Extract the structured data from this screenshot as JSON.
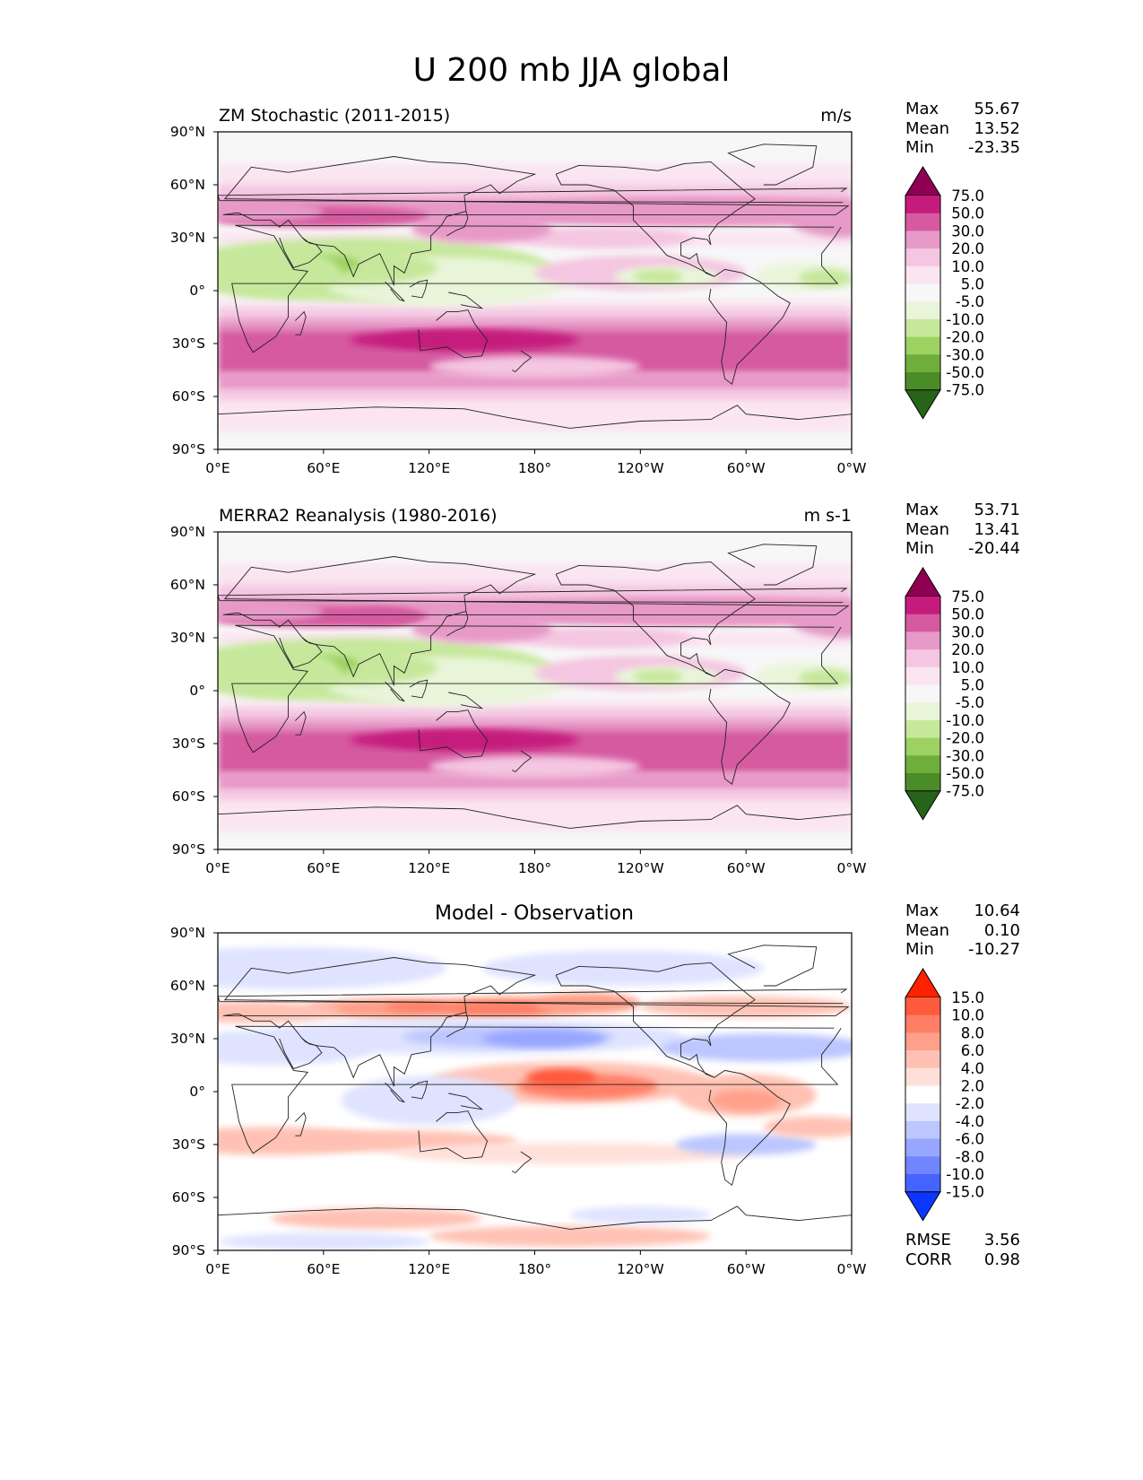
{
  "figure_title": "U 200 mb JJA global",
  "lat_labels": [
    "90°N",
    "60°N",
    "30°N",
    "0°",
    "30°S",
    "60°S",
    "90°S"
  ],
  "lon_labels": [
    "0°E",
    "60°E",
    "120°E",
    "180°",
    "120°W",
    "60°W",
    "0°W"
  ],
  "panels": [
    {
      "left_title": "ZM Stochastic (2011-2015)",
      "right_title": "m/s",
      "stats": {
        "max_label": "Max",
        "max": "55.67",
        "mean_label": "Mean",
        "mean": "13.52",
        "min_label": "Min",
        "min": "-23.35"
      },
      "colorbar": {
        "levels": [
          "75.0",
          "50.0",
          "30.0",
          "20.0",
          "10.0",
          "5.0",
          "-5.0",
          "-10.0",
          "-20.0",
          "-30.0",
          "-50.0",
          "-75.0"
        ],
        "colors": [
          "#8e0152",
          "#c51b7d",
          "#d55aa0",
          "#e799c8",
          "#f4c6e1",
          "#fae5f1",
          "#f7f7f7",
          "#e9f5d9",
          "#c6e89b",
          "#9dd161",
          "#6fae3a",
          "#4a8c27",
          "#276419"
        ]
      }
    },
    {
      "left_title": "MERRA2 Reanalysis (1980-2016)",
      "right_title": "m s-1",
      "stats": {
        "max_label": "Max",
        "max": "53.71",
        "mean_label": "Mean",
        "mean": "13.41",
        "min_label": "Min",
        "min": "-20.44"
      },
      "colorbar": {
        "levels": [
          "75.0",
          "50.0",
          "30.0",
          "20.0",
          "10.0",
          "5.0",
          "-5.0",
          "-10.0",
          "-20.0",
          "-30.0",
          "-50.0",
          "-75.0"
        ],
        "colors": [
          "#8e0152",
          "#c51b7d",
          "#d55aa0",
          "#e799c8",
          "#f4c6e1",
          "#fae5f1",
          "#f7f7f7",
          "#e9f5d9",
          "#c6e89b",
          "#9dd161",
          "#6fae3a",
          "#4a8c27",
          "#276419"
        ]
      }
    },
    {
      "center_title": "Model - Observation",
      "stats": {
        "max_label": "Max",
        "max": "10.64",
        "mean_label": "Mean",
        "mean": "0.10",
        "min_label": "Min",
        "min": "-10.27"
      },
      "extra_stats": {
        "rmse_label": "RMSE",
        "rmse": "3.56",
        "corr_label": "CORR",
        "corr": "0.98"
      },
      "colorbar": {
        "levels": [
          "15.0",
          "10.0",
          "8.0",
          "6.0",
          "4.0",
          "2.0",
          "-2.0",
          "-4.0",
          "-6.0",
          "-8.0",
          "-10.0",
          "-15.0"
        ],
        "colors": [
          "#ff2200",
          "#ff5a3c",
          "#ff7f66",
          "#ffa08a",
          "#ffc1b3",
          "#ffe0d9",
          "#ffffff",
          "#dfe3ff",
          "#bcc6ff",
          "#97a6ff",
          "#7085ff",
          "#4563ff",
          "#0a36ff"
        ]
      }
    }
  ]
}
